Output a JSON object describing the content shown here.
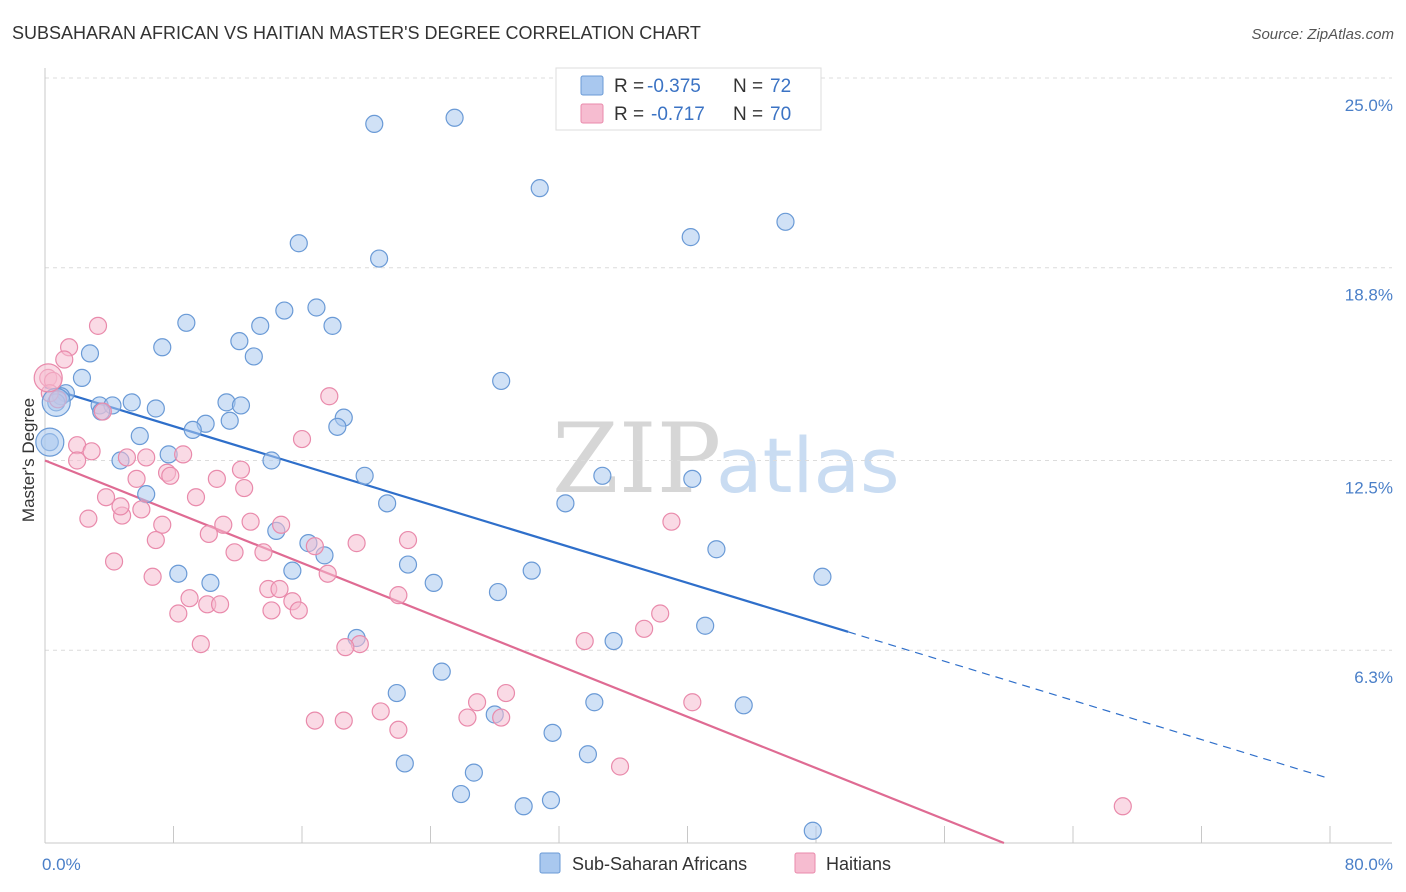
{
  "chart_data": {
    "type": "scatter",
    "title": "SUBSAHARAN AFRICAN VS HAITIAN MASTER'S DEGREE CORRELATION CHART",
    "source": "Source: ZipAtlas.com",
    "ylabel": "Master's Degree",
    "xlabel": "",
    "xlim": [
      0,
      80
    ],
    "ylim": [
      0,
      25.0
    ],
    "x_ticks": [
      "0.0%",
      "80.0%"
    ],
    "y_ticks": [
      {
        "value": 25.0,
        "label": "25.0%"
      },
      {
        "value": 18.8,
        "label": "18.8%"
      },
      {
        "value": 12.5,
        "label": "12.5%"
      },
      {
        "value": 6.3,
        "label": "6.3%"
      }
    ],
    "watermark": {
      "left": "ZIP",
      "right": "atlas"
    },
    "colors": {
      "blue_fill": "#a9c8ef",
      "blue_stroke": "#6a9ad6",
      "blue_line": "#2f6fca",
      "pink_fill": "#f6bcd0",
      "pink_stroke": "#e98aab",
      "pink_line": "#df6b93",
      "grid": "#dcdcdc",
      "tick_text": "#4a7fc8"
    },
    "legend": [
      {
        "series": "blue",
        "r_label": "R =",
        "r_value": "-0.375",
        "n_label": "N =",
        "n_value": "72"
      },
      {
        "series": "pink",
        "r_label": "R =",
        "r_value": "-0.717",
        "n_label": "N =",
        "n_value": "70"
      }
    ],
    "series": [
      {
        "name": "Sub-Saharan Africans",
        "key": "blue",
        "trend": {
          "x0": 0.0,
          "y0": 14.9,
          "x1": 50.0,
          "y1": 6.9,
          "dash_to_x": 80.0,
          "dash_to_y": 2.1
        },
        "points": [
          [
            20.5,
            23.5
          ],
          [
            25.5,
            23.7
          ],
          [
            30.8,
            21.4
          ],
          [
            40.2,
            19.8
          ],
          [
            46.1,
            20.3
          ],
          [
            15.8,
            19.6
          ],
          [
            20.8,
            19.1
          ],
          [
            16.9,
            17.5
          ],
          [
            14.9,
            17.4
          ],
          [
            8.8,
            17.0
          ],
          [
            13.4,
            16.9
          ],
          [
            17.9,
            16.9
          ],
          [
            12.1,
            16.4
          ],
          [
            7.3,
            16.2
          ],
          [
            13.0,
            15.9
          ],
          [
            2.8,
            16.0
          ],
          [
            2.3,
            15.2
          ],
          [
            28.4,
            15.1
          ],
          [
            1.3,
            14.7
          ],
          [
            1.0,
            14.6
          ],
          [
            0.7,
            14.4
          ],
          [
            3.4,
            14.3
          ],
          [
            5.4,
            14.4
          ],
          [
            4.2,
            14.3
          ],
          [
            11.3,
            14.4
          ],
          [
            12.2,
            14.3
          ],
          [
            6.9,
            14.2
          ],
          [
            3.5,
            14.1
          ],
          [
            18.6,
            13.9
          ],
          [
            11.5,
            13.8
          ],
          [
            10.0,
            13.7
          ],
          [
            18.2,
            13.6
          ],
          [
            9.2,
            13.5
          ],
          [
            5.9,
            13.3
          ],
          [
            0.3,
            13.1
          ],
          [
            7.7,
            12.7
          ],
          [
            4.7,
            12.5
          ],
          [
            14.1,
            12.5
          ],
          [
            19.9,
            12.0
          ],
          [
            34.7,
            12.0
          ],
          [
            40.3,
            11.9
          ],
          [
            6.3,
            11.4
          ],
          [
            21.3,
            11.1
          ],
          [
            32.4,
            11.1
          ],
          [
            14.4,
            10.2
          ],
          [
            16.4,
            9.8
          ],
          [
            41.8,
            9.6
          ],
          [
            17.4,
            9.4
          ],
          [
            22.6,
            9.1
          ],
          [
            30.3,
            8.9
          ],
          [
            15.4,
            8.9
          ],
          [
            8.3,
            8.8
          ],
          [
            48.4,
            8.7
          ],
          [
            10.3,
            8.5
          ],
          [
            24.2,
            8.5
          ],
          [
            28.2,
            8.2
          ],
          [
            41.1,
            7.1
          ],
          [
            35.4,
            6.6
          ],
          [
            19.4,
            6.7
          ],
          [
            24.7,
            5.6
          ],
          [
            21.9,
            4.9
          ],
          [
            34.2,
            4.6
          ],
          [
            43.5,
            4.5
          ],
          [
            28.0,
            4.2
          ],
          [
            31.6,
            3.6
          ],
          [
            33.8,
            2.9
          ],
          [
            22.4,
            2.6
          ],
          [
            26.7,
            2.3
          ],
          [
            25.9,
            1.6
          ],
          [
            31.5,
            1.4
          ],
          [
            29.8,
            1.2
          ],
          [
            47.8,
            0.4
          ]
        ]
      },
      {
        "name": "Haitians",
        "key": "pink",
        "trend": {
          "x0": 0.0,
          "y0": 12.5,
          "x1": 59.7,
          "y1": 0.0
        },
        "points": [
          [
            3.3,
            16.9
          ],
          [
            1.5,
            16.2
          ],
          [
            1.2,
            15.8
          ],
          [
            0.2,
            15.2
          ],
          [
            0.5,
            15.1
          ],
          [
            0.3,
            14.7
          ],
          [
            0.8,
            14.5
          ],
          [
            3.6,
            14.1
          ],
          [
            17.7,
            14.6
          ],
          [
            16.0,
            13.2
          ],
          [
            2.0,
            13.0
          ],
          [
            2.9,
            12.8
          ],
          [
            8.6,
            12.7
          ],
          [
            6.3,
            12.6
          ],
          [
            5.1,
            12.6
          ],
          [
            2.0,
            12.5
          ],
          [
            12.2,
            12.2
          ],
          [
            7.6,
            12.1
          ],
          [
            7.8,
            12.0
          ],
          [
            10.7,
            11.9
          ],
          [
            5.7,
            11.9
          ],
          [
            12.4,
            11.6
          ],
          [
            3.8,
            11.3
          ],
          [
            9.4,
            11.3
          ],
          [
            6.0,
            10.9
          ],
          [
            4.8,
            10.7
          ],
          [
            4.7,
            11.0
          ],
          [
            2.7,
            10.6
          ],
          [
            12.8,
            10.5
          ],
          [
            7.3,
            10.4
          ],
          [
            14.7,
            10.4
          ],
          [
            11.1,
            10.4
          ],
          [
            39.0,
            10.5
          ],
          [
            10.2,
            10.1
          ],
          [
            6.9,
            9.9
          ],
          [
            22.6,
            9.9
          ],
          [
            19.4,
            9.8
          ],
          [
            16.8,
            9.7
          ],
          [
            11.8,
            9.5
          ],
          [
            13.6,
            9.5
          ],
          [
            4.3,
            9.2
          ],
          [
            17.6,
            8.8
          ],
          [
            6.7,
            8.7
          ],
          [
            13.9,
            8.3
          ],
          [
            14.6,
            8.3
          ],
          [
            22.0,
            8.1
          ],
          [
            9.0,
            8.0
          ],
          [
            15.4,
            7.9
          ],
          [
            10.1,
            7.8
          ],
          [
            10.9,
            7.8
          ],
          [
            15.8,
            7.6
          ],
          [
            14.1,
            7.6
          ],
          [
            8.3,
            7.5
          ],
          [
            38.3,
            7.5
          ],
          [
            37.3,
            7.0
          ],
          [
            33.6,
            6.6
          ],
          [
            9.7,
            6.5
          ],
          [
            19.6,
            6.5
          ],
          [
            18.7,
            6.4
          ],
          [
            28.7,
            4.9
          ],
          [
            26.9,
            4.6
          ],
          [
            40.3,
            4.6
          ],
          [
            20.9,
            4.3
          ],
          [
            26.3,
            4.1
          ],
          [
            28.4,
            4.1
          ],
          [
            16.8,
            4.0
          ],
          [
            18.6,
            4.0
          ],
          [
            22.0,
            3.7
          ],
          [
            35.8,
            2.5
          ],
          [
            67.1,
            1.2
          ]
        ]
      }
    ]
  }
}
